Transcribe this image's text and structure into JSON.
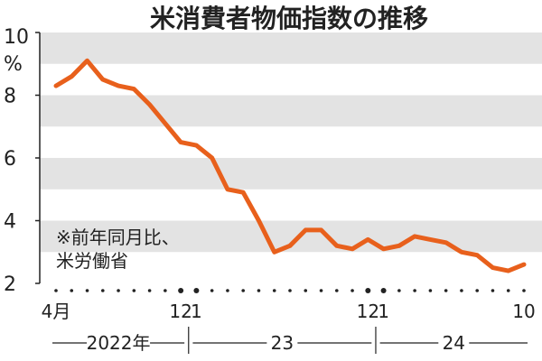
{
  "chart_data": {
    "type": "line",
    "title": "米消費者物価指数の推移",
    "ylabel": "%",
    "ylim": [
      2,
      10
    ],
    "yticks": [
      "10",
      "8",
      "6",
      "4",
      "2"
    ],
    "y_tick_values": [
      10,
      8,
      6,
      4,
      2
    ],
    "grid": "alternating-bands",
    "note_lines": [
      "※前年同月比、",
      "米労働省"
    ],
    "month_labels": [
      {
        "text": "4月",
        "index": 0
      },
      {
        "text": "12",
        "index": 8
      },
      {
        "text": "1",
        "index": 9
      },
      {
        "text": "12",
        "index": 20
      },
      {
        "text": "1",
        "index": 21
      },
      {
        "text": "10",
        "index": 30
      }
    ],
    "year_labels": [
      {
        "text": "2022年",
        "from": 0,
        "to": 8
      },
      {
        "text": "23",
        "from": 9,
        "to": 20
      },
      {
        "text": "24",
        "from": 21,
        "to": 30
      }
    ],
    "series": [
      {
        "color": "#e8601c",
        "values": [
          8.3,
          8.6,
          9.1,
          8.5,
          8.3,
          8.2,
          7.7,
          7.1,
          6.5,
          6.4,
          6.0,
          5.0,
          4.9,
          4.0,
          3.0,
          3.2,
          3.7,
          3.7,
          3.2,
          3.1,
          3.4,
          3.1,
          3.2,
          3.5,
          3.4,
          3.3,
          3.0,
          2.9,
          2.5,
          2.4,
          2.6
        ]
      }
    ]
  }
}
